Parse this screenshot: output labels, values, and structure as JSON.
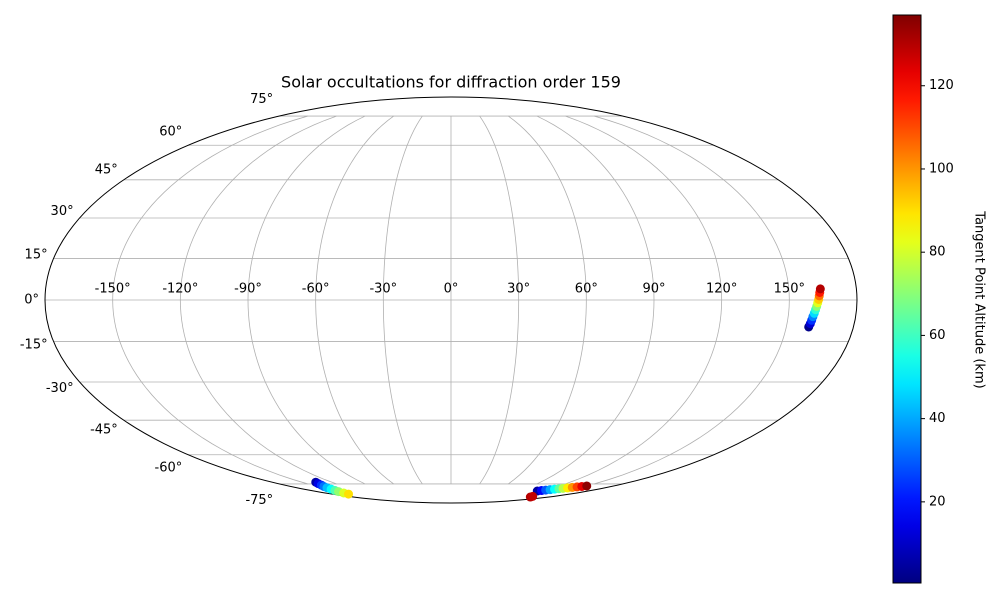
{
  "chart_data": {
    "type": "scatter",
    "projection": "mollweide",
    "title": "Solar occultations for diffraction order 159",
    "colorbar_label": "Tangent Point Altitude (km)",
    "colormap": "jet",
    "clim": [
      0.5,
      137
    ],
    "cticks": [
      20,
      40,
      60,
      80,
      100,
      120
    ],
    "grid": true,
    "xticks": [
      {
        "value": -150,
        "label": "-150°"
      },
      {
        "value": -120,
        "label": "-120°"
      },
      {
        "value": -90,
        "label": "-90°"
      },
      {
        "value": -60,
        "label": "-60°"
      },
      {
        "value": -30,
        "label": "-30°"
      },
      {
        "value": 0,
        "label": "0°"
      },
      {
        "value": 30,
        "label": "30°"
      },
      {
        "value": 60,
        "label": "60°"
      },
      {
        "value": 90,
        "label": "90°"
      },
      {
        "value": 120,
        "label": "120°"
      },
      {
        "value": 150,
        "label": "150°"
      }
    ],
    "yticks": [
      {
        "value": -75,
        "label": "-75°"
      },
      {
        "value": -60,
        "label": "-60°"
      },
      {
        "value": -45,
        "label": "-45°"
      },
      {
        "value": -30,
        "label": "-30°"
      },
      {
        "value": -15,
        "label": "-15°"
      },
      {
        "value": 0,
        "label": "0°"
      },
      {
        "value": 15,
        "label": "15°"
      },
      {
        "value": 30,
        "label": "30°"
      },
      {
        "value": 45,
        "label": "45°"
      },
      {
        "value": 60,
        "label": "60°"
      },
      {
        "value": 75,
        "label": "75°"
      }
    ],
    "series": [
      {
        "x": [
          160,
          160.4,
          160.7,
          161,
          161.4,
          161.8,
          162.2,
          162.6,
          163,
          163.3,
          163.6,
          164
        ],
        "y": [
          -9.7,
          -8.5,
          -7.3,
          -6,
          -4.8,
          -3.5,
          -2.3,
          -1,
          0.2,
          1.5,
          2.7,
          4
        ],
        "values": [
          2,
          12,
          24,
          35,
          47,
          58,
          70,
          82,
          93,
          105,
          117,
          130
        ]
      },
      {
        "x": [
          -136,
          -138,
          -140,
          -142.5,
          -144.5,
          -146.5,
          -148.5,
          -151,
          -153,
          -155
        ],
        "y": [
          -74,
          -74.8,
          -75.7,
          -76.5,
          -77.3,
          -78.2,
          -79,
          -79.8,
          -80.7,
          -81.5
        ],
        "values": [
          5,
          14,
          24,
          33,
          43,
          52,
          62,
          71,
          81,
          90
        ]
      },
      {
        "x": [
          113,
          116.4,
          119.7,
          123.1,
          126.5,
          129.8,
          133.2,
          136.5,
          139.9,
          143.3,
          146.6,
          150
        ],
        "y": [
          -79.4,
          -79.1,
          -78.8,
          -78.5,
          -78.2,
          -77.9,
          -77.7,
          -77.4,
          -77.1,
          -76.8,
          -76.5,
          -76.2
        ],
        "values": [
          5,
          17,
          29,
          40,
          52,
          64,
          76,
          88,
          100,
          111,
          123,
          135
        ]
      },
      {
        "x": [
          146,
          143
        ],
        "y": [
          -83.7,
          -83.2
        ],
        "values": [
          130,
          128
        ]
      }
    ]
  }
}
